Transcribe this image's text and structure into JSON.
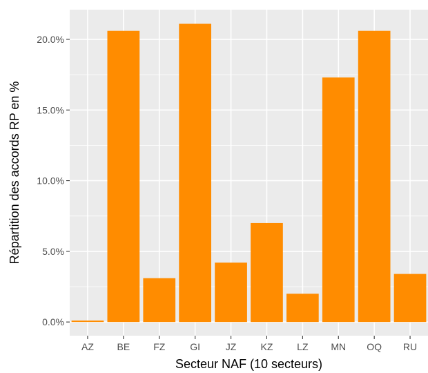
{
  "chart_data": {
    "type": "bar",
    "categories": [
      "AZ",
      "BE",
      "FZ",
      "GI",
      "JZ",
      "KZ",
      "LZ",
      "MN",
      "OQ",
      "RU"
    ],
    "values": [
      0.1,
      20.6,
      3.1,
      21.1,
      4.2,
      7.0,
      2.0,
      17.3,
      20.6,
      3.4
    ],
    "value_unit": "percent",
    "xlabel": "Secteur NAF (10 secteurs)",
    "ylabel": "Répartition des accords RP en %",
    "ylim": [
      -0.97,
      22.1
    ],
    "y_ticks": [
      0,
      5,
      10,
      15,
      20
    ],
    "y_tick_labels": [
      "0.0%",
      "5.0%",
      "10.0%",
      "15.0%",
      "20.0%"
    ],
    "grid": true,
    "colors": {
      "bar": "#ff8c00",
      "panel": "#ebebeb",
      "grid": "#ffffff"
    }
  }
}
